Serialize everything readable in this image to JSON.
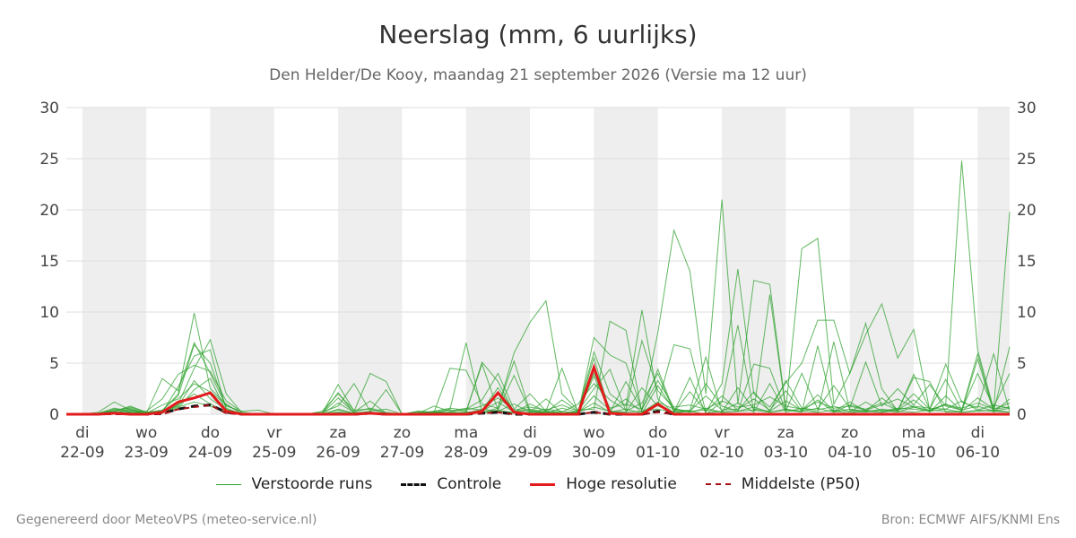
{
  "title": "Neerslag (mm, 6 uurlijks)",
  "subtitle": "Den Helder/De Kooy, maandag 21 september 2026 (Versie ma 12 uur)",
  "footer": {
    "left": "Gegenereerd door MeteoVPS (meteo-service.nl)",
    "right": "Bron: ECMWF AIFS/KNMI Ens"
  },
  "colors": {
    "ensemble": "#2ca02c",
    "control": "#111111",
    "hires": "#e31a1c",
    "median": "#a50f15",
    "band": "#eeeeee",
    "grid": "#dddddd"
  },
  "legend": [
    {
      "label": "Verstoorde runs",
      "style": "ensemble"
    },
    {
      "label": "Controle",
      "style": "control"
    },
    {
      "label": "Hoge resolutie",
      "style": "hires"
    },
    {
      "label": "Middelste (P50)",
      "style": "median"
    }
  ],
  "chart_data": {
    "type": "line",
    "x_unit": "day",
    "y_unit": "mm per 6 hours",
    "ylim": [
      0,
      30
    ],
    "yticks": [
      0,
      5,
      10,
      15,
      20,
      25,
      30
    ],
    "xlim": [
      -0.25,
      14.5
    ],
    "grid": true,
    "legend_position": "bottom",
    "xticks": [
      {
        "x": 0,
        "day": "di",
        "date": "22-09"
      },
      {
        "x": 1,
        "day": "wo",
        "date": "23-09"
      },
      {
        "x": 2,
        "day": "do",
        "date": "24-09"
      },
      {
        "x": 3,
        "day": "vr",
        "date": "25-09"
      },
      {
        "x": 4,
        "day": "za",
        "date": "26-09"
      },
      {
        "x": 5,
        "day": "zo",
        "date": "27-09"
      },
      {
        "x": 6,
        "day": "ma",
        "date": "28-09"
      },
      {
        "x": 7,
        "day": "di",
        "date": "29-09"
      },
      {
        "x": 8,
        "day": "wo",
        "date": "30-09"
      },
      {
        "x": 9,
        "day": "do",
        "date": "01-10"
      },
      {
        "x": 10,
        "day": "vr",
        "date": "02-10"
      },
      {
        "x": 11,
        "day": "za",
        "date": "03-10"
      },
      {
        "x": 12,
        "day": "zo",
        "date": "04-10"
      },
      {
        "x": 13,
        "day": "ma",
        "date": "05-10"
      },
      {
        "x": 14,
        "day": "di",
        "date": "06-10"
      }
    ],
    "shaded_days": [
      [
        0,
        1
      ],
      [
        2,
        3
      ],
      [
        4,
        5
      ],
      [
        6,
        7
      ],
      [
        8,
        9
      ],
      [
        10,
        11
      ],
      [
        12,
        13
      ],
      [
        14,
        14.5
      ]
    ],
    "x": [
      -0.25,
      0,
      0.25,
      0.5,
      0.75,
      1,
      1.25,
      1.5,
      1.75,
      2,
      2.25,
      2.5,
      2.75,
      3,
      3.25,
      3.5,
      3.75,
      4,
      4.25,
      4.5,
      4.75,
      5,
      5.25,
      5.5,
      5.75,
      6,
      6.25,
      6.5,
      6.75,
      7,
      7.25,
      7.5,
      7.75,
      8,
      8.25,
      8.5,
      8.75,
      9,
      9.25,
      9.5,
      9.75,
      10,
      10.25,
      10.5,
      10.75,
      11,
      11.25,
      11.5,
      11.75,
      12,
      12.25,
      12.5,
      12.75,
      13,
      13.25,
      13.5,
      13.75,
      14,
      14.25,
      14.5
    ],
    "hires": [
      0,
      0,
      0,
      0.1,
      0,
      0,
      0.2,
      1.2,
      1.6,
      2.1,
      0.3,
      0,
      0,
      0,
      0,
      0,
      0,
      0,
      0,
      0.1,
      0,
      0,
      0,
      0,
      0,
      0,
      0.3,
      2.1,
      0.2,
      0,
      0,
      0,
      0,
      4.6,
      0.1,
      0,
      0,
      1.0,
      0,
      0,
      0,
      0,
      0,
      0,
      0,
      0,
      0,
      0,
      0,
      0,
      0,
      0,
      0,
      0,
      0,
      0,
      0,
      0,
      0,
      0
    ],
    "control": [
      0,
      0,
      0,
      0.1,
      0,
      0,
      0.1,
      0.5,
      0.8,
      0.9,
      0.2,
      0,
      0,
      0,
      0,
      0,
      0,
      0,
      0,
      0.1,
      0,
      0,
      0,
      0,
      0,
      0,
      0.1,
      0.2,
      0,
      0,
      0,
      0,
      0,
      0.2,
      0,
      0,
      0,
      0.3,
      0,
      0,
      0,
      0,
      0,
      0,
      0,
      0,
      0,
      0,
      0,
      0,
      0,
      0,
      0,
      0,
      0,
      0,
      0,
      0,
      0,
      0
    ],
    "median": [
      0,
      0,
      0,
      0,
      0,
      0,
      0,
      0.5,
      0.7,
      0.9,
      0.1,
      0,
      0,
      0,
      0,
      0,
      0,
      0,
      0,
      0.1,
      0,
      0,
      0,
      0,
      0,
      0,
      0.1,
      0.2,
      0,
      0,
      0,
      0,
      0,
      0.2,
      0,
      0,
      0,
      0.2,
      0,
      0,
      0,
      0,
      0,
      0,
      0,
      0,
      0,
      0,
      0,
      0,
      0,
      0,
      0,
      0,
      0,
      0,
      0,
      0,
      0,
      0
    ],
    "ensemble": [
      [
        0,
        0,
        0,
        0.3,
        0.8,
        0.2,
        0.3,
        2.0,
        9.9,
        2.5,
        1.0,
        0,
        0,
        0,
        0,
        0,
        0.3,
        2.0,
        0.4,
        0.5,
        0.1,
        0,
        0.3,
        0.2,
        0.5,
        7.0,
        0.2,
        0.6,
        5.2,
        0.3,
        0.1,
        0,
        0,
        7.5,
        5.8,
        5.0,
        0.4,
        8.0,
        18.0,
        14.0,
        2.0,
        21.0,
        1.0,
        13.1,
        12.7,
        0.5,
        16.2,
        17.2,
        1.0,
        4.0,
        7.8,
        10.8,
        5.5,
        8.3,
        0.4,
        1.0,
        24.8,
        6.3,
        0.5,
        19.8
      ],
      [
        0,
        0,
        0,
        0.5,
        0.2,
        0.1,
        3.5,
        2.3,
        7.0,
        4.0,
        0.8,
        0.3,
        0.4,
        0,
        0,
        0,
        0.1,
        2.9,
        0.3,
        4.0,
        3.2,
        0,
        0.3,
        0.2,
        4.5,
        4.3,
        1.0,
        0.6,
        6.0,
        9.0,
        11.1,
        2.0,
        0.4,
        0.5,
        9.1,
        8.2,
        0.2,
        1.0,
        6.8,
        6.4,
        0.2,
        3.0,
        14.2,
        2.0,
        0.7,
        3.1,
        5.0,
        9.2,
        9.2,
        4.0,
        8.9,
        2.5,
        0.3,
        3.9,
        0.5,
        3.4,
        0.4,
        5.9,
        0.3,
        6.6
      ],
      [
        0,
        0,
        0.2,
        1.2,
        0.4,
        0,
        0.2,
        1.0,
        4.5,
        7.3,
        2.0,
        0.1,
        0,
        0,
        0,
        0,
        0,
        0.4,
        0.1,
        0.3,
        2.4,
        0,
        0,
        0.3,
        0.1,
        0.2,
        5.1,
        3.2,
        0.2,
        1.0,
        0.3,
        4.5,
        0.2,
        6.1,
        2.0,
        0.8,
        10.2,
        1.5,
        0.1,
        0.3,
        0,
        1.2,
        8.7,
        0.3,
        11.7,
        0.4,
        0.2,
        6.7,
        0.3,
        0.1,
        0.4,
        0.2,
        0.5,
        2.0,
        0.5,
        4.9,
        1.2,
        0.6,
        5.9,
        0.3
      ],
      [
        0,
        0,
        0.1,
        0.3,
        0.7,
        0.2,
        0.4,
        1.8,
        6.8,
        5.0,
        0.6,
        0,
        0,
        0,
        0,
        0,
        0.1,
        2.1,
        0.1,
        0.2,
        0.1,
        0,
        0.1,
        0.1,
        0.4,
        0.3,
        4.9,
        0.4,
        3.8,
        0.2,
        1.5,
        0.1,
        0.3,
        5.5,
        0.2,
        3.2,
        0.4,
        4.4,
        0.3,
        0.4,
        5.6,
        0.2,
        2.6,
        0.5,
        0.3,
        3.3,
        0.6,
        0.2,
        7.1,
        0.4,
        0.3,
        0.2,
        0.4,
        3.6,
        3.2,
        0.2,
        0.3,
        5.4,
        0.2,
        1.5
      ],
      [
        0,
        0,
        0,
        0.2,
        0.5,
        0.1,
        0.2,
        2.7,
        5.7,
        6.3,
        0.4,
        0,
        0,
        0,
        0,
        0,
        0.2,
        0.8,
        3.0,
        0.3,
        0.5,
        0,
        0.2,
        0.1,
        0.2,
        0.5,
        1.4,
        4.0,
        0.5,
        2.0,
        0.3,
        0.2,
        1.0,
        3.0,
        1.4,
        0.4,
        7.2,
        2.3,
        0.6,
        0.2,
        3.0,
        0.8,
        0.3,
        4.9,
        4.5,
        0.3,
        4.0,
        0.5,
        2.8,
        0.6,
        5.1,
        0.8,
        2.5,
        0.9,
        2.9,
        0.8,
        0.4,
        4.0,
        0.7,
        4.0
      ],
      [
        0,
        0,
        0.1,
        0.6,
        0.3,
        0.3,
        1.5,
        3.9,
        4.8,
        4.2,
        1.3,
        0.2,
        0,
        0,
        0,
        0,
        0.1,
        1.6,
        0.2,
        1.3,
        0.1,
        0,
        0.1,
        0.8,
        0.3,
        0.6,
        0.4,
        2.6,
        0.3,
        0.5,
        0.2,
        1.4,
        0.3,
        2.5,
        4.4,
        0.3,
        1.1,
        4.0,
        0.2,
        2.2,
        0.3,
        1.8,
        0.4,
        2.2,
        0.3,
        1.3,
        0.4,
        1.9,
        0.3,
        1.2,
        0.3,
        1.6,
        0.4,
        1.4,
        0.2,
        1.8,
        0.3,
        1.6,
        0.5,
        1.1
      ],
      [
        0,
        0,
        0,
        0.1,
        0.2,
        0,
        0.4,
        0.8,
        3.3,
        1.5,
        0.5,
        0,
        0,
        0,
        0,
        0,
        0,
        0.2,
        0,
        0.2,
        0,
        0,
        0.1,
        0.2,
        0,
        0.2,
        0.3,
        1.2,
        0.2,
        0.4,
        0.1,
        0.6,
        0.2,
        3.7,
        0.3,
        0.2,
        2.6,
        0.8,
        0.2,
        3.6,
        0.1,
        0.3,
        1.1,
        0.2,
        3.0,
        0.2,
        0.6,
        0.4,
        0.8,
        0.2,
        1.2,
        0.3,
        0.6,
        0.5,
        0.3,
        1.0,
        0.4,
        0.8,
        0.3,
        0.6
      ],
      [
        0,
        0,
        0,
        0.1,
        0.4,
        0.1,
        0.2,
        0.6,
        2.4,
        3.5,
        0.3,
        0,
        0,
        0,
        0,
        0,
        0,
        0.5,
        0.1,
        0.1,
        0.1,
        0,
        0,
        0.1,
        0.2,
        0.1,
        0.5,
        0.3,
        1.0,
        0.2,
        0.5,
        0.3,
        0.1,
        1.8,
        0.4,
        1.5,
        0.2,
        1.2,
        0.5,
        0.3,
        1.8,
        0.4,
        0.5,
        1.5,
        0.4,
        2.3,
        0.3,
        1.4,
        0.2,
        0.9,
        0.5,
        1.1,
        0.4,
        0.8,
        0.6,
        0.5,
        1.3,
        0.4,
        0.9,
        0.6
      ],
      [
        0,
        0,
        0,
        0.2,
        0.1,
        0,
        0.1,
        0.9,
        2.0,
        1.0,
        0.2,
        0,
        0,
        0,
        0,
        0,
        0,
        0.1,
        0,
        0,
        0,
        0,
        0,
        0,
        0.1,
        0.1,
        0.2,
        0.4,
        0.1,
        0.2,
        0.3,
        0.1,
        0.2,
        1.1,
        0.2,
        0.5,
        0.1,
        2.8,
        0.4,
        0.2,
        0.6,
        0.2,
        0.3,
        0.7,
        0.2,
        0.4,
        0.3,
        0.6,
        0.2,
        0.5,
        0.3,
        0.4,
        0.2,
        0.7,
        0.3,
        0.5,
        0.2,
        0.4,
        0.3,
        0.2
      ],
      [
        0,
        0,
        0.1,
        0.4,
        0.6,
        0.1,
        0.9,
        1.5,
        3.0,
        2.2,
        0.9,
        0.1,
        0,
        0,
        0,
        0,
        0,
        1.1,
        0.2,
        0.6,
        0.2,
        0,
        0.1,
        0.3,
        0.6,
        0.4,
        0.8,
        1.6,
        0.4,
        0.7,
        0.4,
        0.9,
        0.3,
        4.0,
        0.6,
        1.0,
        0.5,
        3.3,
        0.7,
        0.9,
        0.5,
        1.3,
        0.7,
        0.9,
        1.7,
        0.8,
        0.5,
        1.2,
        0.6,
        0.8,
        0.4,
        0.9,
        1.5,
        0.7,
        0.4,
        0.9,
        0.6,
        1.1,
        0.5,
        0.7
      ],
      [
        0,
        0,
        0,
        0.1,
        0.2,
        0.1,
        0.3,
        0.7,
        1.2,
        0.8,
        0.2,
        0,
        0,
        0,
        0,
        0,
        0,
        0.2,
        0.1,
        0.1,
        0,
        0,
        0,
        0.1,
        0.1,
        0.2,
        0.1,
        0.3,
        0.2,
        0.1,
        0.2,
        0.1,
        0.2,
        0.7,
        0.3,
        0.2,
        0.3,
        0.5,
        0.2,
        0.3,
        0.4,
        0.2,
        0.3,
        0.4,
        0.2,
        0.5,
        0.3,
        0.2,
        0.4,
        0.3,
        0.2,
        0.5,
        0.3,
        0.2,
        0.4,
        0.3,
        0.2,
        0.3,
        0.4,
        0.2
      ]
    ]
  }
}
